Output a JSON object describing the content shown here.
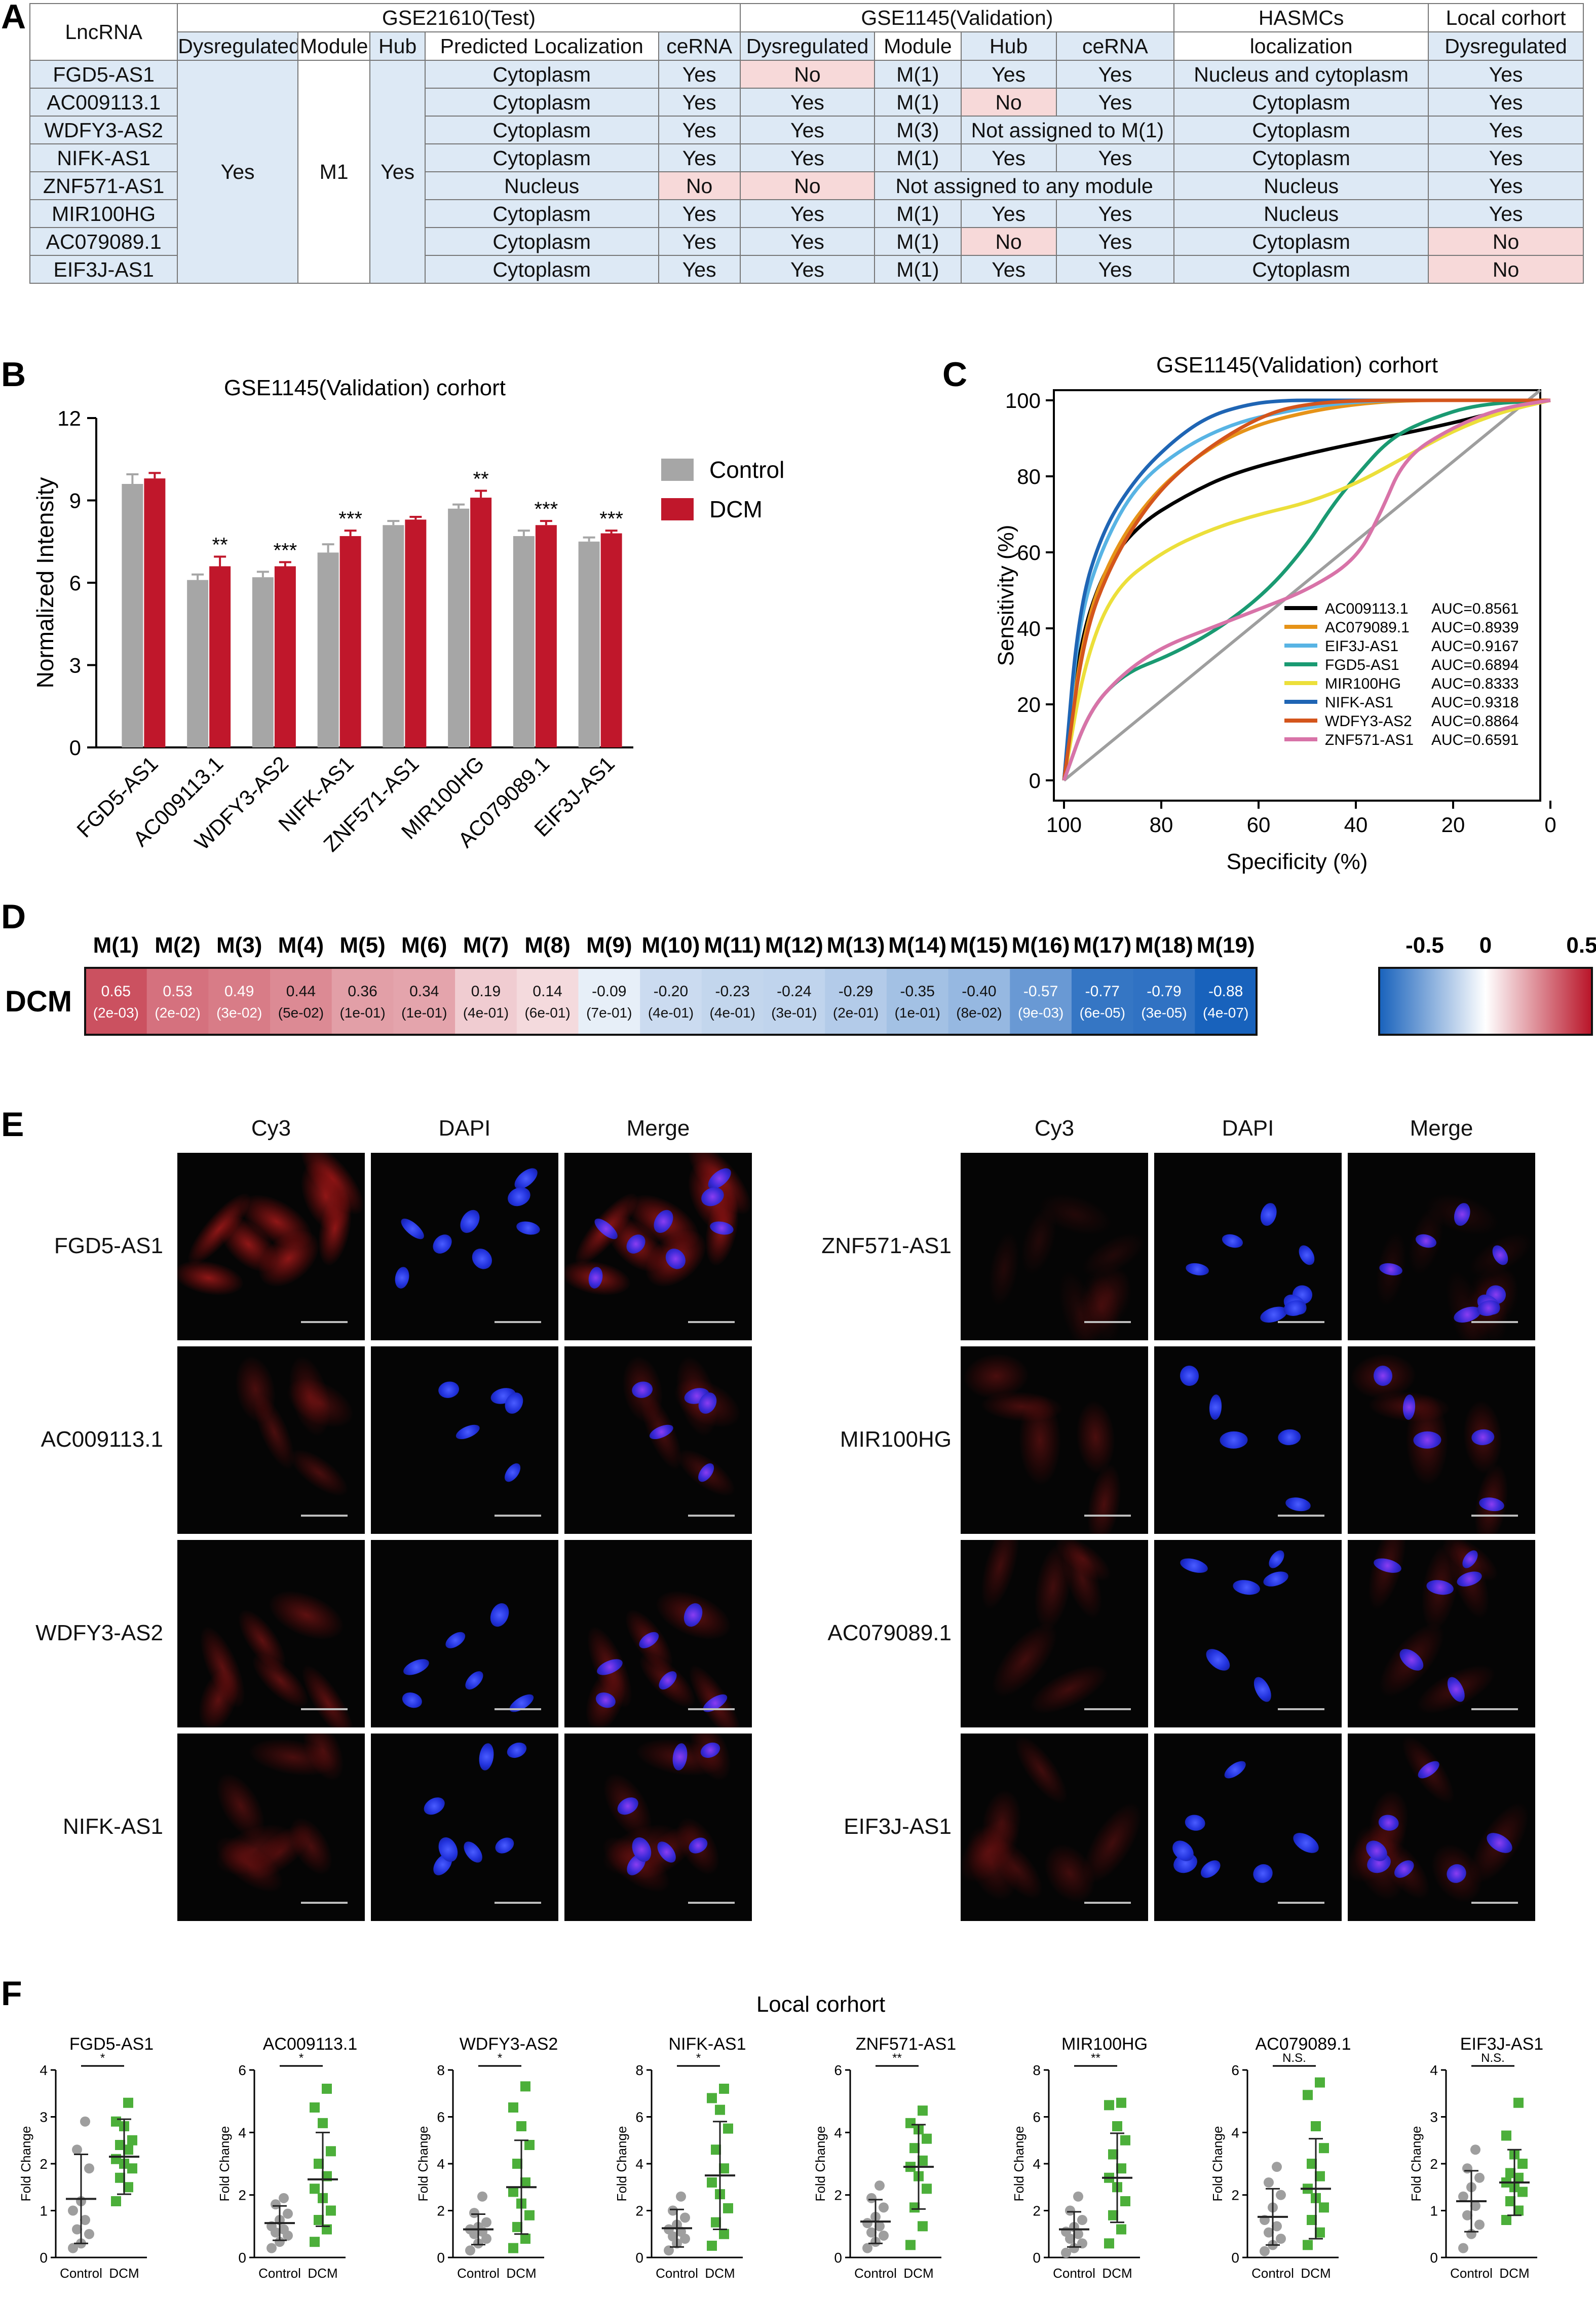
{
  "panels": {
    "A": "A",
    "B": "B",
    "C": "C",
    "D": "D",
    "E": "E",
    "F": "F"
  },
  "tableA": {
    "group_headers": [
      "LncRNA",
      "GSE21610(Test)",
      "GSE1145(Validation)",
      "HASMCs",
      "Local corhort"
    ],
    "sub_headers": [
      "Dysregulated",
      "Module",
      "Hub",
      "Predicted Localization",
      "ceRNA",
      "Dysregulated",
      "Module",
      "Hub",
      "ceRNA",
      "localization",
      "Dysregulated"
    ],
    "test_merged": {
      "dysregulated": "Yes",
      "module": "M1",
      "hub": "Yes"
    },
    "rows": [
      {
        "lnc": "FGD5-AS1",
        "loc": "Cytoplasm",
        "cerna": "Yes",
        "v_dys": "No",
        "v_mod": "M(1)",
        "v_hub": "Yes",
        "v_cerna": "Yes",
        "hasmc": "Nucleus and cytoplasm",
        "local": "Yes"
      },
      {
        "lnc": "AC009113.1",
        "loc": "Cytoplasm",
        "cerna": "Yes",
        "v_dys": "Yes",
        "v_mod": "M(1)",
        "v_hub": "No",
        "v_cerna": "Yes",
        "hasmc": "Cytoplasm",
        "local": "Yes"
      },
      {
        "lnc": "WDFY3-AS2",
        "loc": "Cytoplasm",
        "cerna": "Yes",
        "v_dys": "Yes",
        "v_mod": "M(3)",
        "v_hub_merged": "Not assigned to M(1)",
        "hasmc": "Cytoplasm",
        "local": "Yes"
      },
      {
        "lnc": "NIFK-AS1",
        "loc": "Cytoplasm",
        "cerna": "Yes",
        "v_dys": "Yes",
        "v_mod": "M(1)",
        "v_hub": "Yes",
        "v_cerna": "Yes",
        "hasmc": "Cytoplasm",
        "local": "Yes"
      },
      {
        "lnc": "ZNF571-AS1",
        "loc": "Nucleus",
        "cerna": "No",
        "v_dys": "No",
        "v_merged": "Not assigned to any module",
        "hasmc": "Nucleus",
        "local": "Yes"
      },
      {
        "lnc": "MIR100HG",
        "loc": "Cytoplasm",
        "cerna": "Yes",
        "v_dys": "Yes",
        "v_mod": "M(1)",
        "v_hub": "Yes",
        "v_cerna": "Yes",
        "hasmc": "Nucleus",
        "local": "Yes"
      },
      {
        "lnc": "AC079089.1",
        "loc": "Cytoplasm",
        "cerna": "Yes",
        "v_dys": "Yes",
        "v_mod": "M(1)",
        "v_hub": "No",
        "v_cerna": "Yes",
        "hasmc": "Cytoplasm",
        "local": "No"
      },
      {
        "lnc": "EIF3J-AS1",
        "loc": "Cytoplasm",
        "cerna": "Yes",
        "v_dys": "Yes",
        "v_mod": "M(1)",
        "v_hub": "Yes",
        "v_cerna": "Yes",
        "hasmc": "Cytoplasm",
        "local": "No"
      }
    ]
  },
  "colors": {
    "control": "#a6a6a6",
    "dcm": "#c0172b",
    "light_blue": "#dde9f5",
    "light_pink": "#f7d9d9",
    "f_control": "#9e9e9e",
    "f_dcm": "#4caf3a"
  },
  "chart_data": [
    {
      "type": "bar",
      "title": "GSE1145(Validation) corhort",
      "ylabel": "Normalized Intensity",
      "ylim": [
        0,
        12
      ],
      "yticks": [
        0,
        3,
        6,
        9,
        12
      ],
      "categories": [
        "FGD5-AS1",
        "AC009113.1",
        "WDFY3-AS2",
        "NIFK-AS1",
        "ZNF571-AS1",
        "MIR100HG",
        "AC079089.1",
        "EIF3J-AS1"
      ],
      "series": [
        {
          "name": "Control",
          "values": [
            9.6,
            6.1,
            6.2,
            7.1,
            8.1,
            8.7,
            7.7,
            7.5
          ],
          "errors": [
            0.35,
            0.2,
            0.2,
            0.3,
            0.15,
            0.15,
            0.2,
            0.15
          ]
        },
        {
          "name": "DCM",
          "values": [
            9.8,
            6.6,
            6.6,
            7.7,
            8.3,
            9.1,
            8.1,
            7.8
          ],
          "errors": [
            0.2,
            0.35,
            0.15,
            0.2,
            0.1,
            0.25,
            0.15,
            0.1
          ]
        }
      ],
      "significance": [
        "",
        "**",
        "***",
        "***",
        "",
        "**",
        "***",
        "***"
      ],
      "legend": "right"
    },
    {
      "type": "line",
      "title": "GSE1145(Validation) corhort",
      "xlabel": "Specificity (%)",
      "ylabel": "Sensitivity (%)",
      "xlim": [
        100,
        0
      ],
      "ylim": [
        0,
        100
      ],
      "xticks": [
        100,
        80,
        60,
        40,
        20,
        0
      ],
      "yticks": [
        0,
        20,
        40,
        60,
        80,
        100
      ],
      "legend": "bottom-right",
      "series": [
        {
          "name": "AC009113.1",
          "auc": "AUC=0.8561",
          "color": "#000000",
          "x": [
            100,
            97,
            92,
            85,
            75,
            65,
            50,
            35,
            20,
            8,
            0
          ],
          "y": [
            0,
            35,
            55,
            67,
            75,
            81,
            86,
            90,
            94,
            98,
            100
          ]
        },
        {
          "name": "AC079089.1",
          "auc": "AUC=0.8939",
          "color": "#e69318",
          "x": [
            100,
            96,
            90,
            82,
            72,
            62,
            50,
            40,
            30,
            15,
            0
          ],
          "y": [
            0,
            40,
            60,
            75,
            86,
            93,
            97,
            99,
            100,
            100,
            100
          ]
        },
        {
          "name": "EIF3J-AS1",
          "auc": "AUC=0.9167",
          "color": "#58b4e4",
          "x": [
            100,
            97,
            92,
            85,
            75,
            65,
            55,
            45,
            35,
            20,
            0
          ],
          "y": [
            0,
            42,
            62,
            78,
            88,
            94,
            97,
            99,
            100,
            100,
            100
          ]
        },
        {
          "name": "FGD5-AS1",
          "auc": "AUC=0.6894",
          "color": "#1a9a72",
          "x": [
            100,
            95,
            88,
            78,
            68,
            58,
            50,
            45,
            40,
            33,
            25,
            15,
            0
          ],
          "y": [
            0,
            18,
            28,
            33,
            40,
            50,
            62,
            72,
            80,
            90,
            95,
            99,
            100
          ]
        },
        {
          "name": "MIR100HG",
          "auc": "AUC=0.8333",
          "color": "#ecdf3a",
          "x": [
            100,
            96,
            90,
            80,
            70,
            60,
            50,
            40,
            30,
            20,
            10,
            0
          ],
          "y": [
            0,
            30,
            50,
            60,
            66,
            70,
            73,
            78,
            85,
            92,
            97,
            100
          ]
        },
        {
          "name": "NIFK-AS1",
          "auc": "AUC=0.9318",
          "color": "#1f65b4",
          "x": [
            100,
            97,
            92,
            85,
            77,
            70,
            62,
            55,
            45,
            30,
            0
          ],
          "y": [
            0,
            45,
            66,
            80,
            90,
            96,
            99,
            100,
            100,
            100,
            100
          ]
        },
        {
          "name": "WDFY3-AS2",
          "auc": "AUC=0.8864",
          "color": "#d4551c",
          "x": [
            100,
            96,
            90,
            82,
            74,
            65,
            57,
            50,
            40,
            25,
            0
          ],
          "y": [
            0,
            38,
            58,
            74,
            84,
            92,
            97,
            99,
            100,
            100,
            100
          ]
        },
        {
          "name": "ZNF571-AS1",
          "auc": "AUC=0.6591",
          "color": "#d873a8",
          "x": [
            100,
            95,
            88,
            80,
            70,
            60,
            50,
            40,
            35,
            30,
            20,
            10,
            0
          ],
          "y": [
            0,
            18,
            28,
            35,
            40,
            45,
            50,
            58,
            70,
            85,
            93,
            98,
            100
          ]
        }
      ]
    },
    {
      "type": "heatmap",
      "row_label": "DCM",
      "columns": [
        "M(1)",
        "M(2)",
        "M(3)",
        "M(4)",
        "M(5)",
        "M(6)",
        "M(7)",
        "M(8)",
        "M(9)",
        "M(10)",
        "M(11)",
        "M(12)",
        "M(13)",
        "M(14)",
        "M(15)",
        "M(16)",
        "M(17)",
        "M(18)",
        "M(19)"
      ],
      "values": [
        0.65,
        0.53,
        0.49,
        0.44,
        0.36,
        0.34,
        0.19,
        0.14,
        -0.09,
        -0.2,
        -0.23,
        -0.24,
        -0.29,
        -0.35,
        -0.4,
        -0.57,
        -0.77,
        -0.79,
        -0.88
      ],
      "value_labels": [
        "0.65",
        "0.53",
        "0.49",
        "0.44",
        "0.36",
        "0.34",
        "0.19",
        "0.14",
        "-0.09",
        "-0.20",
        "-0.23",
        "-0.24",
        "-0.29",
        "-0.35",
        "-0.40",
        "-0.57",
        "-0.77",
        "-0.79",
        "-0.88"
      ],
      "pvalues": [
        "(2e-03)",
        "(2e-02)",
        "(3e-02)",
        "(5e-02)",
        "(1e-01)",
        "(1e-01)",
        "(4e-01)",
        "(6e-01)",
        "(7e-01)",
        "(4e-01)",
        "(4e-01)",
        "(3e-01)",
        "(2e-01)",
        "(1e-01)",
        "(8e-02)",
        "(9e-03)",
        "(6e-05)",
        "(3e-05)",
        "(4e-07)"
      ],
      "scale_ticks": [
        "-0.5",
        "0",
        "0.5"
      ],
      "scale_range": [
        -0.88,
        0.88
      ]
    },
    {
      "type": "scatter",
      "title": "Local corhort",
      "ylabel": "Fold Change",
      "groups": [
        "Control",
        "DCM"
      ],
      "subplots": [
        {
          "name": "FGD5-AS1",
          "ylim": [
            0,
            4
          ],
          "yticks": [
            0,
            1,
            2,
            3,
            4
          ],
          "sig": "*",
          "control": [
            0.2,
            0.3,
            0.5,
            0.6,
            0.8,
            1.0,
            1.2,
            1.9,
            2.3,
            2.9
          ],
          "dcm": [
            1.2,
            1.5,
            1.7,
            1.9,
            2.0,
            2.1,
            2.3,
            2.4,
            2.5,
            2.8,
            2.9,
            3.3
          ],
          "control_mean": 1.25,
          "control_sd": 0.95,
          "dcm_mean": 2.15,
          "dcm_sd": 0.8
        },
        {
          "name": "AC009113.1",
          "ylim": [
            0,
            6
          ],
          "yticks": [
            0,
            2,
            4,
            6
          ],
          "sig": "*",
          "control": [
            0.3,
            0.5,
            0.7,
            0.8,
            0.9,
            1.0,
            1.2,
            1.4,
            1.7,
            1.9
          ],
          "dcm": [
            0.5,
            0.9,
            1.2,
            1.5,
            1.9,
            2.2,
            2.6,
            3.0,
            3.4,
            4.3,
            4.8,
            5.4
          ],
          "control_mean": 1.1,
          "control_sd": 0.55,
          "dcm_mean": 2.5,
          "dcm_sd": 1.5
        },
        {
          "name": "WDFY3-AS2",
          "ylim": [
            0,
            8
          ],
          "yticks": [
            0,
            2,
            4,
            6,
            8
          ],
          "sig": "*",
          "control": [
            0.3,
            0.6,
            0.8,
            1.0,
            1.1,
            1.2,
            1.3,
            1.5,
            1.9,
            2.6
          ],
          "dcm": [
            0.4,
            0.8,
            1.3,
            1.8,
            2.3,
            2.8,
            3.2,
            4.0,
            4.8,
            5.6,
            6.4,
            7.3
          ],
          "control_mean": 1.2,
          "control_sd": 0.65,
          "dcm_mean": 3.0,
          "dcm_sd": 2.0
        },
        {
          "name": "NIFK-AS1",
          "ylim": [
            0,
            8
          ],
          "yticks": [
            0,
            2,
            4,
            6,
            8
          ],
          "sig": "*",
          "control": [
            0.3,
            0.6,
            0.8,
            0.9,
            1.1,
            1.2,
            1.4,
            1.7,
            2.0,
            2.6
          ],
          "dcm": [
            0.5,
            1.0,
            1.5,
            2.1,
            2.7,
            3.2,
            3.8,
            4.6,
            5.5,
            6.3,
            6.8,
            7.2
          ],
          "control_mean": 1.25,
          "control_sd": 0.8,
          "dcm_mean": 3.5,
          "dcm_sd": 2.3
        },
        {
          "name": "ZNF571-AS1",
          "ylim": [
            0,
            6
          ],
          "yticks": [
            0,
            2,
            4,
            6
          ],
          "sig": "**",
          "control": [
            0.3,
            0.5,
            0.7,
            0.8,
            1.0,
            1.1,
            1.3,
            1.6,
            1.9,
            2.3
          ],
          "dcm": [
            0.4,
            1.0,
            1.6,
            2.2,
            2.6,
            2.9,
            3.1,
            3.5,
            3.8,
            4.1,
            4.3,
            4.7
          ],
          "control_mean": 1.15,
          "control_sd": 0.7,
          "dcm_mean": 2.9,
          "dcm_sd": 1.35
        },
        {
          "name": "MIR100HG",
          "ylim": [
            0,
            8
          ],
          "yticks": [
            0,
            2,
            4,
            6,
            8
          ],
          "sig": "**",
          "control": [
            0.2,
            0.4,
            0.6,
            0.8,
            1.0,
            1.1,
            1.3,
            1.6,
            2.0,
            2.6
          ],
          "dcm": [
            0.6,
            1.2,
            1.8,
            2.4,
            3.0,
            3.4,
            3.8,
            4.4,
            5.0,
            5.6,
            6.5,
            6.6
          ],
          "control_mean": 1.2,
          "control_sd": 0.75,
          "dcm_mean": 3.4,
          "dcm_sd": 1.9
        },
        {
          "name": "AC079089.1",
          "ylim": [
            0,
            6
          ],
          "yticks": [
            0,
            2,
            4,
            6
          ],
          "sig": "N.S.",
          "control": [
            0.2,
            0.4,
            0.6,
            0.8,
            1.0,
            1.2,
            1.6,
            2.0,
            2.4,
            2.9
          ],
          "dcm": [
            0.4,
            0.8,
            1.2,
            1.6,
            1.9,
            2.2,
            2.6,
            3.0,
            3.5,
            4.2,
            5.2,
            5.6
          ],
          "control_mean": 1.3,
          "control_sd": 0.9,
          "dcm_mean": 2.2,
          "dcm_sd": 1.6
        },
        {
          "name": "EIF3J-AS1",
          "ylim": [
            0,
            4
          ],
          "yticks": [
            0,
            1,
            2,
            3,
            4
          ],
          "sig": "N.S.",
          "control": [
            0.2,
            0.5,
            0.7,
            0.9,
            1.1,
            1.3,
            1.5,
            1.7,
            1.9,
            2.3
          ],
          "dcm": [
            0.8,
            1.0,
            1.2,
            1.4,
            1.5,
            1.6,
            1.7,
            1.8,
            2.0,
            2.2,
            2.6,
            3.3
          ],
          "control_mean": 1.2,
          "control_sd": 0.65,
          "dcm_mean": 1.6,
          "dcm_sd": 0.7
        }
      ]
    }
  ],
  "panelE": {
    "columns": [
      "Cy3",
      "DAPI",
      "Merge"
    ],
    "left_rows": [
      "FGD5-AS1",
      "AC009113.1",
      "WDFY3-AS2",
      "NIFK-AS1"
    ],
    "right_rows": [
      "ZNF571-AS1",
      "MIR100HG",
      "AC079089.1",
      "EIF3J-AS1"
    ]
  }
}
